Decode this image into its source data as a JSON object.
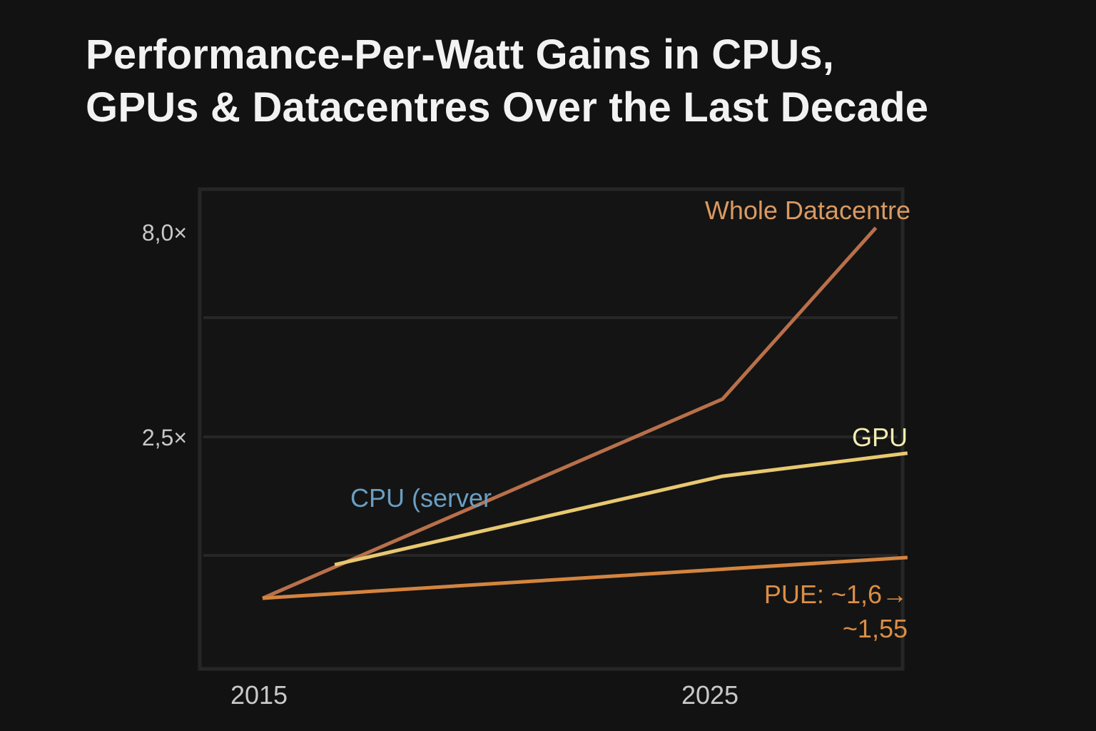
{
  "chart_data": {
    "type": "line",
    "title": "Performance-Per-Watt Gains in CPUs, GPUs & Datacentres Over the Last Decade",
    "title_lines": [
      "Performance-Per-Watt Gains in CPUs,",
      "GPUs & Datacentres Over the Last Decade"
    ],
    "xlabel": "",
    "ylabel": "",
    "y_scale": "log",
    "ylim": [
      0.8,
      9.5
    ],
    "xlim": [
      2013.6,
      2029.6
    ],
    "x_ticks": [
      {
        "value": 2015,
        "label": "2015"
      },
      {
        "value": 2025,
        "label": "2025"
      }
    ],
    "y_ticks": [
      {
        "value": 8.0,
        "label": "8,0×"
      },
      {
        "value": 2.5,
        "label": "2,5×"
      }
    ],
    "grid": true,
    "background": "#121212",
    "series": [
      {
        "name": "Whole Datacentre",
        "color": "#b8704a",
        "label_color": "#d99a62",
        "x": [
          2015,
          2025.2,
          2028.6
        ],
        "y": [
          1.0,
          3.1,
          8.2
        ]
      },
      {
        "name": "GPU",
        "color": "#e8c870",
        "label_color": "#f3eeb0",
        "x": [
          2016.6,
          2025.2,
          2029.3
        ],
        "y": [
          1.21,
          2.0,
          2.28
        ]
      },
      {
        "name": "PUE",
        "color": "#d4843e",
        "label_color": "#dc8e45",
        "x": [
          2015,
          2029.3
        ],
        "y": [
          1.0,
          1.26
        ]
      }
    ],
    "annotations": [
      {
        "text": "CPU (server",
        "color": "#6a9ec2"
      },
      {
        "text": "PUE: ~1,6→",
        "color": "#dc8e45"
      },
      {
        "text": "~1,55",
        "color": "#dc8e45"
      }
    ]
  }
}
